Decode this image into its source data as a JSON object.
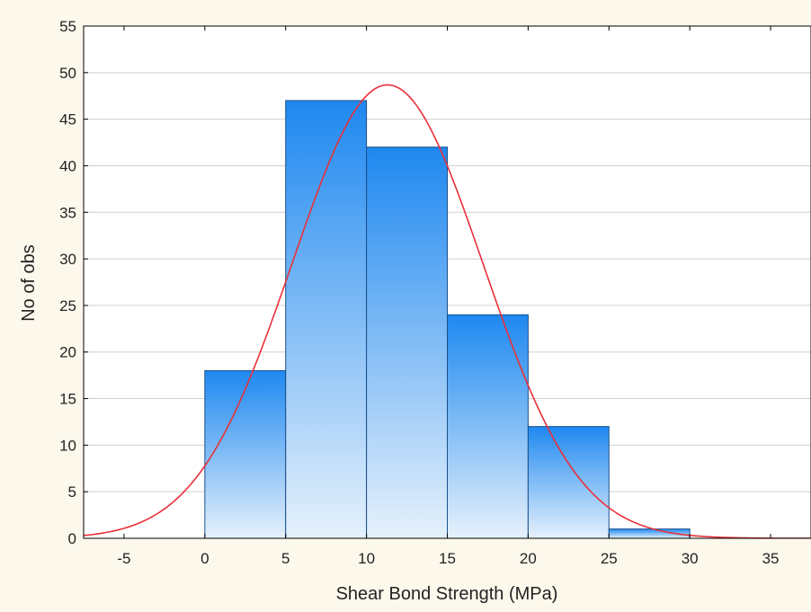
{
  "chart_data": {
    "type": "bar",
    "title": "",
    "xlabel": "Shear Bond Strength (MPa)",
    "ylabel": "No of obs",
    "bins": [
      {
        "from": 0,
        "to": 5,
        "count": 18
      },
      {
        "from": 5,
        "to": 10,
        "count": 47
      },
      {
        "from": 10,
        "to": 15,
        "count": 42
      },
      {
        "from": 15,
        "to": 20,
        "count": 24
      },
      {
        "from": 20,
        "to": 25,
        "count": 12
      },
      {
        "from": 25,
        "to": 30,
        "count": 1
      }
    ],
    "xlim": [
      -7.5,
      37.5
    ],
    "ylim": [
      0,
      55
    ],
    "x_ticks": [
      -5,
      0,
      5,
      10,
      15,
      20,
      25,
      30,
      35
    ],
    "y_ticks": [
      0,
      5,
      10,
      15,
      20,
      25,
      30,
      35,
      40,
      45,
      50,
      55
    ],
    "grid": "horizontal",
    "normal_fit": {
      "mean": 11.3,
      "sd": 5.9,
      "n": 144,
      "bin_width": 5
    },
    "colors": {
      "bar_top": "#1e88f0",
      "bar_bottom": "#e6f1fc",
      "bar_edge": "#1a4f8a",
      "curve": "#e8303a",
      "grid": "#cfcfcf",
      "background": "#fdf8ec",
      "plot_background": "#ffffff"
    }
  }
}
